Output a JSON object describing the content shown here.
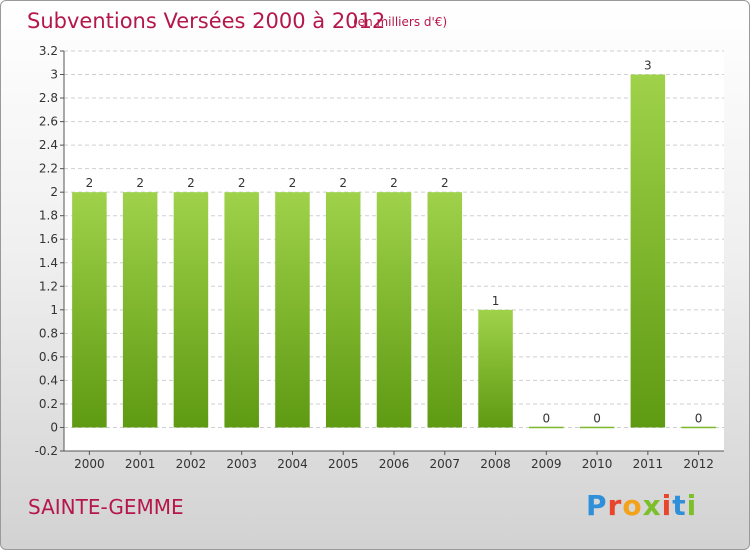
{
  "header": {
    "title": "Subventions Versées 2000 à 2012",
    "unit": "(en milliers d'€)"
  },
  "footer": {
    "commune": "SAINTE-GEMME",
    "brand": "Proxiti",
    "brand_colors": [
      "#2f8fd8",
      "#e8452c",
      "#f2a31b",
      "#7cbf2a",
      "#e8452c",
      "#2f8fd8",
      "#7cbf2a"
    ]
  },
  "colors": {
    "title": "#b5174b",
    "bar_light": "#9fd24a",
    "bar_dark": "#5e9a12"
  },
  "chart_data": {
    "type": "bar",
    "title": "Subventions Versées 2000 à 2012",
    "categories": [
      "2000",
      "2001",
      "2002",
      "2003",
      "2004",
      "2005",
      "2006",
      "2007",
      "2008",
      "2009",
      "2010",
      "2011",
      "2012"
    ],
    "values": [
      2,
      2,
      2,
      2,
      2,
      2,
      2,
      2,
      1,
      0,
      0,
      3,
      0
    ],
    "value_labels": [
      "2",
      "2",
      "2",
      "2",
      "2",
      "2",
      "2",
      "2",
      "1",
      "0",
      "0",
      "3",
      "0"
    ],
    "ylim": [
      -0.2,
      3.2
    ],
    "yticks": [
      -0.2,
      0,
      0.2,
      0.4,
      0.6,
      0.8,
      1,
      1.2,
      1.4,
      1.6,
      1.8,
      2,
      2.2,
      2.4,
      2.6,
      2.8,
      3,
      3.2
    ],
    "ytick_labels": [
      "-0.2",
      "0",
      "0.2",
      "0.4",
      "0.6",
      "0.8",
      "1",
      "1.2",
      "1.4",
      "1.6",
      "1.8",
      "2",
      "2.2",
      "2.4",
      "2.6",
      "2.8",
      "3",
      "3.2"
    ],
    "grid": true,
    "xlabel": "",
    "ylabel": ""
  }
}
